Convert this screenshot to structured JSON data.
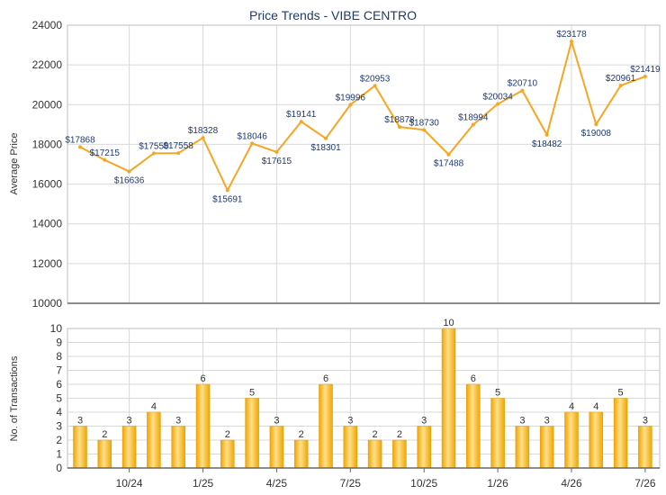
{
  "chart_data": [
    {
      "type": "line",
      "title": "Price Trends - VIBE CENTRO",
      "ylabel": "Average Price",
      "ylim": [
        10000,
        24000
      ],
      "yticks": [
        10000,
        12000,
        14000,
        16000,
        18000,
        20000,
        22000,
        24000
      ],
      "grid": true,
      "color": "#f5a623",
      "series": [
        {
          "values": [
            17868,
            17215,
            16636,
            17550,
            17558,
            18328,
            15691,
            18046,
            17615,
            19141,
            18301,
            19996,
            20953,
            18878,
            18730,
            17488,
            18994,
            20034,
            20710,
            18482,
            23178,
            19008,
            20961,
            21419
          ],
          "labels": [
            "$17868",
            "$17215",
            "$16636",
            "$17550",
            "$17558",
            "$18328",
            "$15691",
            "$18046",
            "$17615",
            "$19141",
            "$18301",
            "$19996",
            "$20953",
            "$18878",
            "$18730",
            "$17488",
            "$18994",
            "$20034",
            "$20710",
            "$18482",
            "$23178",
            "$19008",
            "$20961",
            "$21419"
          ]
        }
      ]
    },
    {
      "type": "bar",
      "ylabel": "No. of Transactions",
      "ylim": [
        0,
        10
      ],
      "yticks": [
        0,
        1,
        2,
        3,
        4,
        5,
        6,
        7,
        8,
        9,
        10
      ],
      "xticks": [
        "10/24",
        "1/25",
        "4/25",
        "7/25",
        "10/25",
        "1/26",
        "4/26",
        "7/26"
      ],
      "grid": true,
      "color": "#f5a623",
      "values": [
        3,
        2,
        3,
        4,
        3,
        6,
        2,
        5,
        3,
        2,
        6,
        3,
        2,
        2,
        3,
        10,
        6,
        5,
        3,
        3,
        4,
        4,
        5,
        3
      ]
    }
  ]
}
